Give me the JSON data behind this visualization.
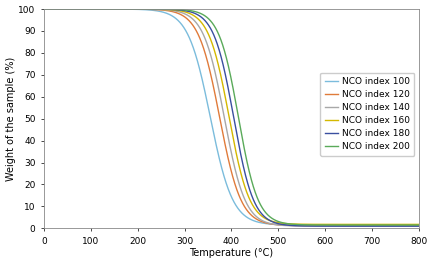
{
  "title": "",
  "xlabel": "Temperature (°C)",
  "ylabel": "Weight of the sample (%)",
  "xlim": [
    0,
    800
  ],
  "ylim": [
    0,
    100
  ],
  "xticks": [
    0,
    100,
    200,
    300,
    400,
    500,
    600,
    700,
    800
  ],
  "yticks": [
    0,
    10,
    20,
    30,
    40,
    50,
    60,
    70,
    80,
    90,
    100
  ],
  "series": [
    {
      "label": "NCO index 100",
      "color": "#7bbcdc",
      "midpoint": 355,
      "steepness": 0.042,
      "final_val": 1.5
    },
    {
      "label": "NCO index 120",
      "color": "#e07b3a",
      "midpoint": 375,
      "steepness": 0.044,
      "final_val": 1.2
    },
    {
      "label": "NCO index 140",
      "color": "#a8a8a8",
      "midpoint": 385,
      "steepness": 0.045,
      "final_val": 1.0
    },
    {
      "label": "NCO index 160",
      "color": "#d4b800",
      "midpoint": 395,
      "steepness": 0.046,
      "final_val": 1.8
    },
    {
      "label": "NCO index 180",
      "color": "#3a4fa0",
      "midpoint": 405,
      "steepness": 0.047,
      "final_val": 1.0
    },
    {
      "label": "NCO index 200",
      "color": "#5aaa5a",
      "midpoint": 415,
      "steepness": 0.048,
      "final_val": 1.5
    }
  ],
  "legend_loc": "center right",
  "fontsize": 7,
  "tick_fontsize": 6.5,
  "line_width": 1.0,
  "background_color": "#ffffff"
}
